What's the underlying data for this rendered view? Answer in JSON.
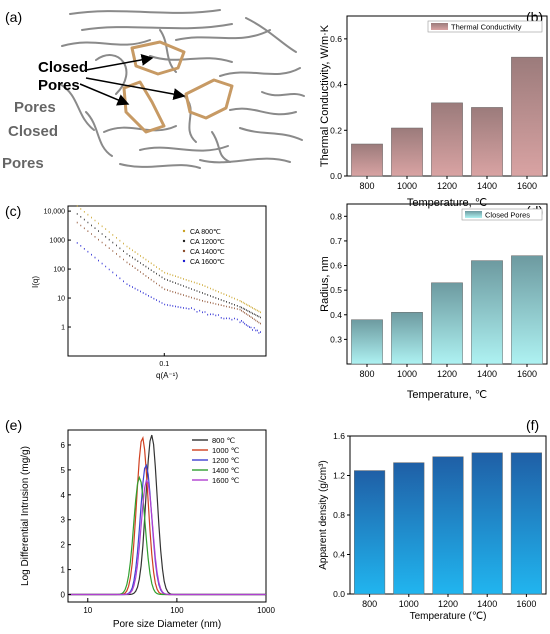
{
  "panels": {
    "a": "(a)",
    "b": "(b)",
    "c": "(c)",
    "d": "(d)",
    "e": "(e)",
    "f": "(f)"
  },
  "schematic": {
    "label_line1": "Closed",
    "label_line2": "Pores",
    "ghost_lines": [
      "Pores",
      "Closed",
      "Pores"
    ],
    "label_color": "#c79a64",
    "pore_outline_color": "#c79a64",
    "fiber_color": "#8a8a8a"
  },
  "chart_data": [
    {
      "id": "b",
      "type": "bar",
      "categories": [
        "800",
        "1000",
        "1200",
        "1400",
        "1600"
      ],
      "values": [
        0.14,
        0.21,
        0.32,
        0.3,
        0.52
      ],
      "ylabel": "Thermal Conductivity, W/m·K",
      "xlabel": "Temperature, ℃",
      "ylim": [
        0,
        0.7
      ],
      "yticks": [
        "0.0",
        "0.2",
        "0.4",
        "0.6"
      ],
      "legend": "Thermal Conductivity",
      "legend_position": "top-right",
      "colors": {
        "top": "#9b7b7b",
        "bottom": "#d9a3a3"
      }
    },
    {
      "id": "c",
      "type": "scatter",
      "xscale": "log",
      "yscale": "log",
      "xlabel": "q(A⁻¹)",
      "ylabel": "I(q)",
      "xlim": [
        0.017,
        0.65
      ],
      "ylim": [
        0.1,
        15000
      ],
      "xticks": [
        "0.1"
      ],
      "yticks": [
        "10,000",
        "1000",
        "100",
        "10",
        "1"
      ],
      "legend_position": "top-right",
      "series": [
        {
          "name": "CA 800℃",
          "color": "#c8a020",
          "x": [
            0.02,
            0.05,
            0.1,
            0.2,
            0.4,
            0.6
          ],
          "y": [
            15000,
            600,
            75,
            28,
            8,
            3
          ]
        },
        {
          "name": "CA 1200℃",
          "color": "#202020",
          "x": [
            0.02,
            0.05,
            0.1,
            0.2,
            0.4,
            0.6
          ],
          "y": [
            8000,
            330,
            45,
            15,
            5,
            2
          ]
        },
        {
          "name": "CA 1400℃",
          "color": "#8a4a28",
          "x": [
            0.02,
            0.05,
            0.1,
            0.2,
            0.4,
            0.6
          ],
          "y": [
            4000,
            170,
            20,
            8,
            4,
            1.2
          ]
        },
        {
          "name": "CA 1600℃",
          "color": "#1a1ad0",
          "x": [
            0.02,
            0.05,
            0.1,
            0.2,
            0.4,
            0.6
          ],
          "y": [
            800,
            30,
            6,
            3.5,
            1.5,
            0.6
          ]
        }
      ]
    },
    {
      "id": "d",
      "type": "bar",
      "categories": [
        "800",
        "1000",
        "1200",
        "1400",
        "1600"
      ],
      "values": [
        0.38,
        0.41,
        0.53,
        0.62,
        0.64
      ],
      "ylabel": "Radius, nm",
      "xlabel": "Temperature, ℃",
      "ylim": [
        0.2,
        0.85
      ],
      "yticks": [
        "0.3",
        "0.4",
        "0.5",
        "0.6",
        "0.7",
        "0.8"
      ],
      "legend": "Closed Pores",
      "legend_position": "top-right",
      "colors": {
        "top": "#6d9aa0",
        "bottom": "#aef2f2"
      }
    },
    {
      "id": "e",
      "type": "line",
      "xscale": "log",
      "xlabel": "Pore size Diameter (nm)",
      "ylabel": "Log Differential Intrusion (mg/g)",
      "xlim": [
        6,
        1000
      ],
      "ylim": [
        -0.3,
        6.6
      ],
      "xticks": [
        "10",
        "100",
        "1000"
      ],
      "yticks": [
        "0",
        "1",
        "2",
        "3",
        "4",
        "5",
        "6"
      ],
      "legend_position": "top-right",
      "series": [
        {
          "name": "800 ℃",
          "color": "#333333",
          "peak_x": 52,
          "peak_y": 6.4
        },
        {
          "name": "1000 ℃",
          "color": "#d04020",
          "peak_x": 41,
          "peak_y": 6.3
        },
        {
          "name": "1200 ℃",
          "color": "#4040d0",
          "peak_x": 45,
          "peak_y": 5.2
        },
        {
          "name": "1400 ℃",
          "color": "#30a030",
          "peak_x": 38,
          "peak_y": 4.7
        },
        {
          "name": "1600 ℃",
          "color": "#b040d0",
          "peak_x": 46,
          "peak_y": 4.6
        }
      ]
    },
    {
      "id": "f",
      "type": "bar",
      "categories": [
        "800",
        "1000",
        "1200",
        "1400",
        "1600"
      ],
      "values": [
        1.25,
        1.33,
        1.39,
        1.43,
        1.43
      ],
      "ylabel": "Apparent density  (g/cm³)",
      "xlabel": "Temperature (℃)",
      "ylim": [
        0,
        1.6
      ],
      "yticks": [
        "0.0",
        "0.4",
        "0.8",
        "1.2",
        "1.6"
      ],
      "colors": {
        "top": "#1f5fa6",
        "bottom": "#21b5ef"
      }
    }
  ]
}
